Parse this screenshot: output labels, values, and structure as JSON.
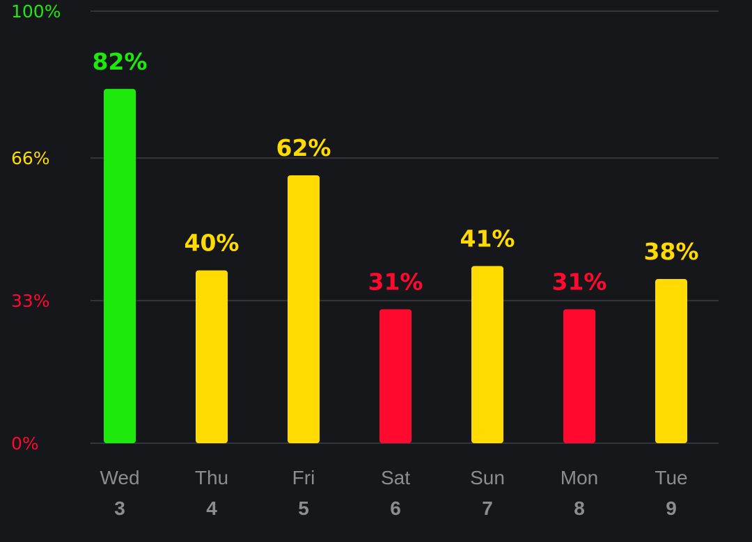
{
  "chart_data": {
    "type": "bar",
    "categories": [
      {
        "day": "Wed",
        "date": "3"
      },
      {
        "day": "Thu",
        "date": "4"
      },
      {
        "day": "Fri",
        "date": "5"
      },
      {
        "day": "Sat",
        "date": "6"
      },
      {
        "day": "Sun",
        "date": "7"
      },
      {
        "day": "Mon",
        "date": "8"
      },
      {
        "day": "Tue",
        "date": "9"
      }
    ],
    "values": [
      82,
      40,
      62,
      31,
      41,
      31,
      38
    ],
    "value_labels": [
      "82%",
      "40%",
      "62%",
      "31%",
      "41%",
      "31%",
      "38%"
    ],
    "ylim": [
      0,
      100
    ],
    "y_ticks": [
      {
        "value": 0,
        "label": "0%",
        "color": "#ff0a2e"
      },
      {
        "value": 33,
        "label": "33%",
        "color": "#ff0a2e"
      },
      {
        "value": 66,
        "label": "66%",
        "color": "#ffdb00"
      },
      {
        "value": 100,
        "label": "100%",
        "color": "#1de90d"
      }
    ],
    "grid": true,
    "colors": {
      "high": "#1de90d",
      "mid": "#ffdb00",
      "low": "#ff0a2e",
      "grid": "#34363c",
      "axis_text": "#8b8d93",
      "background": "#15171b"
    },
    "thresholds": {
      "low_max": 33,
      "mid_max": 66
    }
  }
}
